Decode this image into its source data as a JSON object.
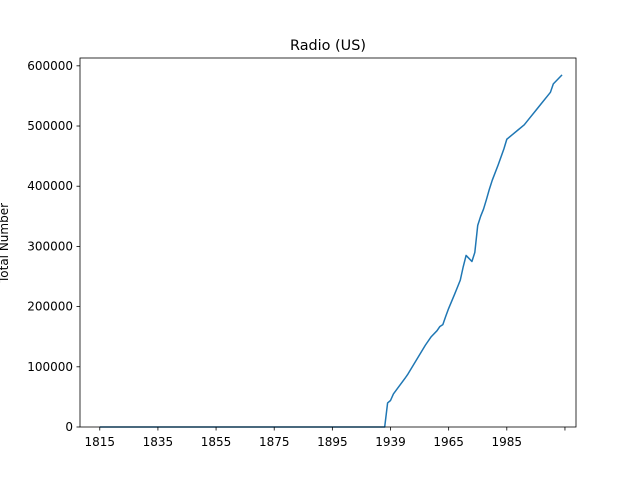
{
  "chart_data": {
    "type": "line",
    "title": "Radio (US)",
    "xlabel": "",
    "ylabel": "Total Number",
    "x_tick_labels": [
      "1815",
      "1835",
      "1855",
      "1875",
      "1895",
      "1939",
      "1965",
      "1985",
      ""
    ],
    "y_tick_labels": [
      "0",
      "100000",
      "200000",
      "300000",
      "400000",
      "500000",
      "600000"
    ],
    "y_ticks": [
      0,
      100000,
      200000,
      300000,
      400000,
      500000,
      600000
    ],
    "ylim": [
      0,
      613000
    ],
    "grid": false,
    "legend": "none",
    "series": [
      {
        "color": "#1f77b4",
        "points": [
          [
            0,
            0
          ],
          [
            98,
            0
          ],
          [
            99,
            40000
          ],
          [
            100,
            44000
          ],
          [
            101,
            55000
          ],
          [
            103,
            68000
          ],
          [
            105,
            81000
          ],
          [
            106,
            88000
          ],
          [
            108,
            104000
          ],
          [
            110,
            120000
          ],
          [
            112,
            136000
          ],
          [
            114,
            150000
          ],
          [
            116,
            160000
          ],
          [
            117,
            167000
          ],
          [
            118,
            170000
          ],
          [
            119,
            184000
          ],
          [
            120,
            197000
          ],
          [
            122,
            220000
          ],
          [
            123,
            232000
          ],
          [
            124,
            244000
          ],
          [
            125,
            266000
          ],
          [
            126,
            285000
          ],
          [
            127,
            280000
          ],
          [
            128,
            275000
          ],
          [
            129,
            290000
          ],
          [
            130,
            335000
          ],
          [
            131,
            350000
          ],
          [
            132,
            362000
          ],
          [
            133,
            378000
          ],
          [
            134,
            395000
          ],
          [
            135,
            410000
          ],
          [
            137,
            435000
          ],
          [
            139,
            462000
          ],
          [
            140,
            478000
          ],
          [
            142,
            486000
          ],
          [
            144,
            494000
          ],
          [
            146,
            502000
          ],
          [
            148,
            514000
          ],
          [
            150,
            526000
          ],
          [
            152,
            538000
          ],
          [
            154,
            550000
          ],
          [
            155,
            556000
          ],
          [
            156,
            570000
          ],
          [
            158,
            580000
          ],
          [
            159,
            585000
          ]
        ]
      }
    ],
    "x_index_range": [
      -6.8,
      163.8
    ]
  }
}
